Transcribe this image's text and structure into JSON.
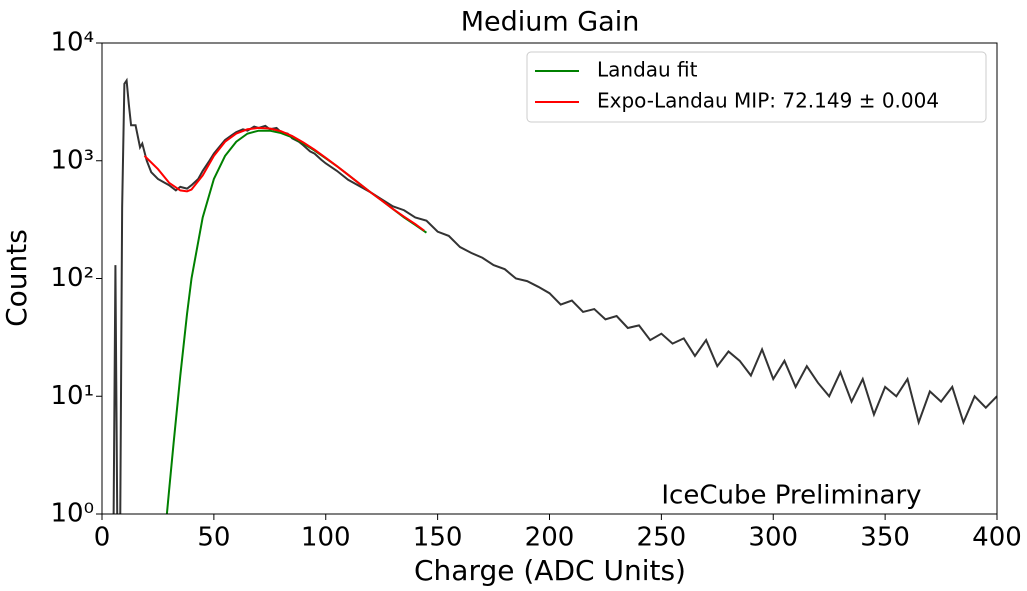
{
  "chart_data": {
    "type": "line",
    "title": "Medium Gain",
    "x_label": "Charge (ADC Units)",
    "y_label": "Counts",
    "annotation": "IceCube Preliminary",
    "annotation_color": "#ff0000",
    "log_y": true,
    "legend": "upper right",
    "xlim": [
      0,
      400
    ],
    "xticks": [
      0,
      50,
      100,
      150,
      200,
      250,
      300,
      350,
      400
    ],
    "ylim": [
      1,
      10000
    ],
    "yticks": [
      {
        "value": 1,
        "label": "10⁰"
      },
      {
        "value": 10,
        "label": "10¹"
      },
      {
        "value": 100,
        "label": "10²"
      },
      {
        "value": 1000,
        "label": "10³"
      },
      {
        "value": 10000,
        "label": "10⁴"
      }
    ],
    "series": [
      {
        "color": "#333333",
        "x": [
          5,
          6,
          7,
          8,
          9,
          10,
          11,
          12,
          13,
          15,
          17,
          18,
          20,
          22,
          25,
          28,
          30,
          33,
          35,
          38,
          40,
          43,
          45,
          48,
          50,
          53,
          55,
          58,
          60,
          63,
          65,
          68,
          70,
          73,
          75,
          78,
          80,
          83,
          85,
          88,
          90,
          93,
          95,
          98,
          100,
          105,
          110,
          115,
          120,
          125,
          130,
          135,
          140,
          145,
          150,
          155,
          160,
          165,
          170,
          175,
          180,
          185,
          190,
          195,
          200,
          205,
          210,
          215,
          220,
          225,
          230,
          235,
          240,
          245,
          250,
          255,
          260,
          265,
          270,
          275,
          280,
          285,
          290,
          295,
          300,
          305,
          310,
          315,
          320,
          325,
          330,
          335,
          340,
          345,
          350,
          355,
          360,
          365,
          370,
          375,
          380,
          385,
          390,
          395,
          400
        ],
        "values": [
          0.3,
          130,
          0.3,
          0.3,
          400,
          4500,
          4800,
          3000,
          2000,
          2000,
          1300,
          1400,
          1000,
          800,
          700,
          650,
          620,
          560,
          600,
          580,
          620,
          700,
          820,
          1000,
          1150,
          1350,
          1500,
          1650,
          1750,
          1850,
          1800,
          1950,
          1900,
          1980,
          1850,
          1900,
          1750,
          1700,
          1550,
          1450,
          1350,
          1200,
          1150,
          1020,
          950,
          820,
          690,
          610,
          540,
          470,
          410,
          380,
          330,
          310,
          250,
          230,
          185,
          165,
          150,
          130,
          120,
          100,
          95,
          85,
          75,
          60,
          65,
          52,
          55,
          45,
          48,
          38,
          40,
          30,
          34,
          28,
          31,
          22,
          30,
          18,
          24,
          20,
          15,
          25,
          14,
          20,
          12,
          18,
          13,
          10,
          16,
          9,
          14,
          7,
          12,
          10,
          14,
          6,
          11,
          9,
          12,
          6,
          10,
          8,
          10
        ]
      },
      {
        "name": "Landau fit",
        "color": "#008000",
        "x": [
          29,
          30,
          32,
          35,
          38,
          40,
          45,
          50,
          55,
          60,
          65,
          70,
          75,
          80,
          85,
          90,
          95,
          100,
          105,
          110,
          115,
          120,
          125,
          130,
          135,
          140,
          145
        ],
        "values": [
          1,
          1.6,
          4,
          15,
          50,
          100,
          330,
          700,
          1100,
          1450,
          1700,
          1800,
          1800,
          1720,
          1580,
          1400,
          1220,
          1050,
          900,
          760,
          640,
          540,
          460,
          390,
          330,
          285,
          245
        ]
      },
      {
        "name": "Expo-Landau MIP: 72.149 ± 0.004",
        "color": "#ff0000",
        "x": [
          19,
          25,
          30,
          35,
          38,
          40,
          45,
          50,
          55,
          60,
          65,
          70,
          75,
          80,
          85,
          90,
          95,
          100,
          105,
          110,
          115,
          120,
          125,
          130,
          135,
          140,
          144
        ],
        "values": [
          1100,
          850,
          650,
          560,
          550,
          570,
          750,
          1100,
          1450,
          1700,
          1850,
          1900,
          1880,
          1780,
          1620,
          1430,
          1240,
          1060,
          900,
          760,
          640,
          540,
          460,
          390,
          335,
          290,
          255
        ]
      }
    ]
  }
}
